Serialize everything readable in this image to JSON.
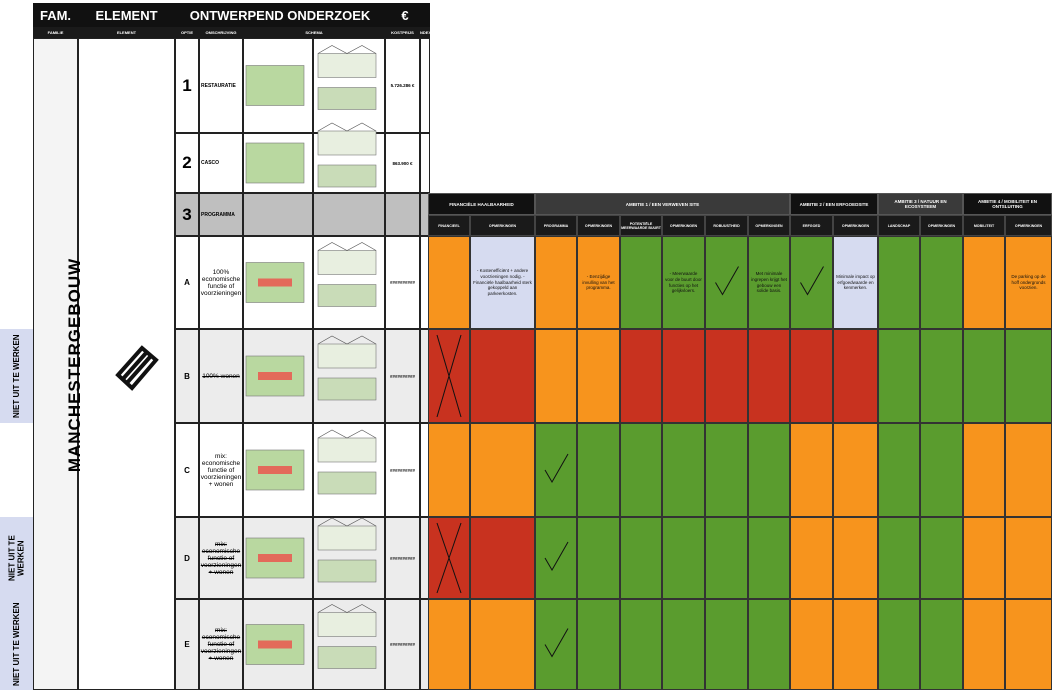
{
  "left_table": {
    "headers": [
      "FAM.",
      "ELEMENT",
      "ONTWERPEND ONDERZOEK",
      "€"
    ],
    "subheaders": [
      "FAMILIE",
      "ELEMENT",
      "OPTIE",
      "OMSCHRIJVING",
      "SCHEMA",
      "KOSTPRIJS",
      "INDEX"
    ],
    "family": "MANCHESTERGEBOUW",
    "rows": [
      {
        "option": "1",
        "description": "RESTAURATIE",
        "cost": "5.726.286 €",
        "schema": true
      },
      {
        "option": "2",
        "description": "CASCO",
        "cost": "863.900 €",
        "schema": true
      },
      {
        "option": "3",
        "description": "PROGRAMMA",
        "shaded": true
      },
      {
        "option": "A",
        "description": "100% economische functie of voorzieningen",
        "cost": "##########",
        "schema": true
      },
      {
        "option": "B",
        "description": "100% wonen",
        "cost": "##########",
        "schema": true,
        "struck": true,
        "note": "NIET UIT TE WERKEN"
      },
      {
        "option": "C",
        "description": "mix: economische functie of voorzieningen + wonen",
        "cost": "##########",
        "schema": true
      },
      {
        "option": "D",
        "description": "mix: economische functie of voorzieningen + wonen",
        "cost": "##########",
        "schema": true,
        "struck": true,
        "note": "NIET UIT TE WERKEN"
      },
      {
        "option": "E",
        "description": "mix: economische functie of voorzieningen + wonen",
        "cost": "##########",
        "schema": true,
        "struck": true,
        "note": "NIET UIT TE WERKEN"
      }
    ]
  },
  "evaluation": {
    "groups": [
      {
        "label": "FINANCIËLE HAALBAARHEID",
        "span": 2
      },
      {
        "label": "AMBITIE 1 / EEN VERWEVEN SITE",
        "span": 6
      },
      {
        "label": "AMBITIE 2 / EEN ERFGOEDSITE",
        "span": 2
      },
      {
        "label": "AMBITIE 3 / NATUUR EN ECOSYSTEEM",
        "span": 2
      },
      {
        "label": "AMBITIE 4 / MOBILITEIT EN ONTSLUITING",
        "span": 2
      }
    ],
    "columns": [
      "FINANCIEEL",
      "OPMERKINGEN",
      "PROGRAMMA",
      "OPMERKINGEN",
      "POTENTIËLE MEERWAARDE BUURT",
      "OPMERKINGEN",
      "ROBUUSTHEID",
      "OPMERKINGEN",
      "ERFGOED",
      "OPMERKINGEN",
      "LANDSCHAP",
      "OPMERKINGEN",
      "MOBILITEIT",
      "OPMERKINGEN"
    ],
    "highlight_color": "#d6dbf0",
    "rows": [
      {
        "colors": [
          "#f7941d",
          "#f7941d",
          "#5a9c2e",
          "#5a9c2e",
          "#5a9c2e",
          "#5a9c2e",
          "#f7941d"
        ],
        "check": [
          3,
          4
        ],
        "cross": [],
        "highlight": [
          0,
          4
        ],
        "comments": [
          "- Kostenefficiënt + andere voorzieningen nodig. - Financiële haalbaarheid sterk gekoppeld aan parkeerkosten.",
          "- Eenzijdige invulling van het programma.",
          "- Meerwaarde voor de buurt door functies op het gelijkvloers.",
          "Met minimale ingrepen krijgt het gebouw een solide basis.",
          "Minimale impact op erfgoedwaarde en kenmerken.",
          null,
          "De parking op de hoff ondergronds voorzien."
        ]
      },
      {
        "colors": [
          "#c8321f",
          "#f7941d",
          "#c8321f",
          "#c8321f",
          "#c8321f",
          "#5a9c2e",
          "#5a9c2e"
        ],
        "check": [],
        "cross": [
          0
        ],
        "highlight": [],
        "comments": [
          null,
          null,
          null,
          null,
          null,
          null,
          null
        ]
      },
      {
        "colors": [
          "#f7941d",
          "#5a9c2e",
          "#5a9c2e",
          "#5a9c2e",
          "#f7941d",
          "#5a9c2e",
          "#f7941d"
        ],
        "check": [
          1
        ],
        "cross": [],
        "highlight": [],
        "comments": [
          null,
          null,
          null,
          null,
          null,
          null,
          null
        ]
      },
      {
        "colors": [
          "#c8321f",
          "#5a9c2e",
          "#5a9c2e",
          "#5a9c2e",
          "#f7941d",
          "#5a9c2e",
          "#f7941d"
        ],
        "check": [
          1
        ],
        "cross": [
          0
        ],
        "highlight": [],
        "comments": [
          null,
          null,
          null,
          null,
          null,
          null,
          null
        ]
      },
      {
        "colors": [
          "#f7941d",
          "#5a9c2e",
          "#5a9c2e",
          "#5a9c2e",
          "#f7941d",
          "#5a9c2e",
          "#f7941d"
        ],
        "check": [
          1
        ],
        "cross": [],
        "highlight": [],
        "comments": [
          null,
          null,
          null,
          null,
          null,
          null,
          null
        ]
      }
    ]
  }
}
